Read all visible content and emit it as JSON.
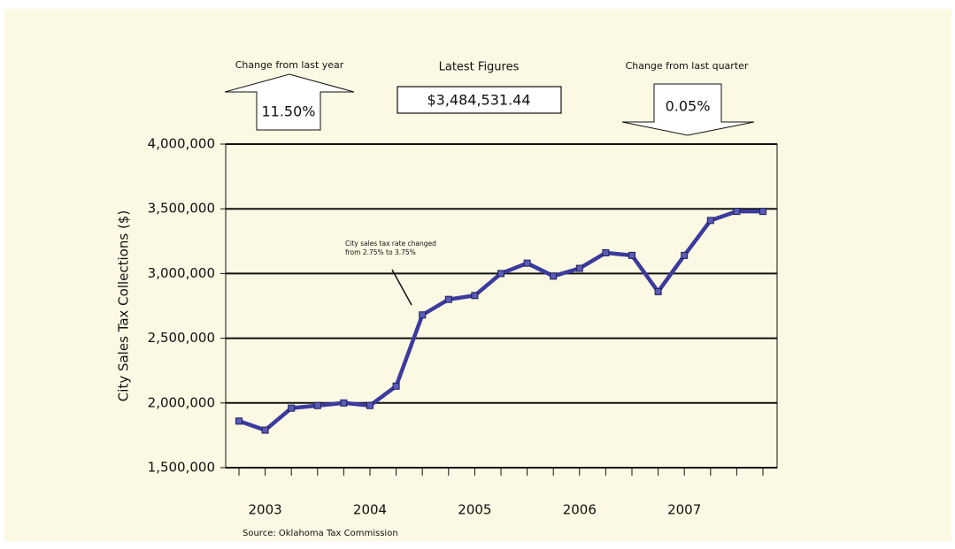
{
  "chart_data": {
    "type": "line",
    "y_label": "City Sales Tax Collections ($)",
    "source": "Source: Oklahoma Tax Commission",
    "annotation": [
      "City sales tax rate changed",
      "from 2.75% to 3.75%"
    ],
    "header": {
      "year_change": {
        "title": "Change from last year",
        "value": "11.50%",
        "direction": "up"
      },
      "latest": {
        "title": "Latest Figures",
        "value": "$3,484,531.44"
      },
      "quarter_change": {
        "title": "Change from last quarter",
        "value": "0.05%",
        "direction": "down"
      }
    },
    "categories": [
      null,
      "2003",
      null,
      null,
      null,
      "2004",
      null,
      null,
      null,
      "2005",
      null,
      null,
      null,
      "2006",
      null,
      null,
      null,
      "2007",
      null,
      null,
      null
    ],
    "series": [
      {
        "name": null,
        "color": "#3b3b9e",
        "values": [
          1860000,
          1790000,
          1960000,
          1980000,
          2000000,
          1980000,
          2130000,
          2680000,
          2800000,
          2830000,
          3000000,
          3080000,
          2980000,
          3040000,
          3160000,
          3140000,
          2860000,
          3140000,
          3410000,
          3480000,
          3480000
        ]
      }
    ],
    "ylim": [
      1500000,
      4000000
    ],
    "yticks": [
      {
        "value": 1500000,
        "label": "1,500,000"
      },
      {
        "value": 2000000,
        "label": "2,000,000"
      },
      {
        "value": 2500000,
        "label": "2,500,000"
      },
      {
        "value": 3000000,
        "label": "3,000,000"
      },
      {
        "value": 3500000,
        "label": "3,500,000"
      },
      {
        "value": 4000000,
        "label": "4,000,000"
      }
    ],
    "grid": true
  }
}
